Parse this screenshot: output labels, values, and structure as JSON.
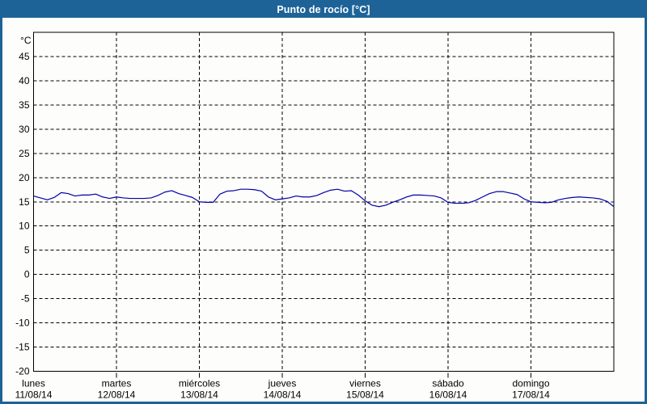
{
  "window": {
    "title": "Punto de rocío [°C]",
    "titlebar_color": "#1d6398",
    "border_color": "#1d6398",
    "background_color": "#fdfefb"
  },
  "chart_data": {
    "type": "line",
    "title": "Punto de rocío [°C]",
    "grid": {
      "style": "dashed",
      "color": "#000000",
      "frame_color": "#000000"
    },
    "legend_position": "none",
    "y_axis": {
      "unit_label": "°C",
      "min": -20,
      "max": 50,
      "tick_step": 5,
      "tick_labels": [
        45,
        40,
        35,
        30,
        25,
        20,
        15,
        10,
        5,
        0,
        -5,
        -10,
        -15,
        -20
      ]
    },
    "x_axis": {
      "days": [
        {
          "name": "lunes",
          "date": "11/08/14"
        },
        {
          "name": "martes",
          "date": "12/08/14"
        },
        {
          "name": "miércoles",
          "date": "13/08/14"
        },
        {
          "name": "jueves",
          "date": "14/08/14"
        },
        {
          "name": "viernes",
          "date": "15/08/14"
        },
        {
          "name": "sábado",
          "date": "16/08/14"
        },
        {
          "name": "domingo",
          "date": "17/08/14"
        }
      ]
    },
    "series": [
      {
        "name": "Punto de rocío",
        "color": "#0000aa",
        "sample_interval_hours": 2,
        "values": [
          16.2,
          15.8,
          15.4,
          15.9,
          16.9,
          16.7,
          16.2,
          16.4,
          16.4,
          16.6,
          16.0,
          15.7,
          16.0,
          15.8,
          15.7,
          15.7,
          15.7,
          15.8,
          16.3,
          17.0,
          17.3,
          16.7,
          16.3,
          15.9,
          15.0,
          14.9,
          14.9,
          16.6,
          17.2,
          17.3,
          17.6,
          17.6,
          17.5,
          17.2,
          16.0,
          15.4,
          15.6,
          15.8,
          16.2,
          16.0,
          16.0,
          16.3,
          16.9,
          17.4,
          17.6,
          17.2,
          17.3,
          16.4,
          15.2,
          14.3,
          14.0,
          14.3,
          14.9,
          15.4,
          16.0,
          16.4,
          16.4,
          16.3,
          16.2,
          15.8,
          14.9,
          14.7,
          14.7,
          14.8,
          15.3,
          16.0,
          16.7,
          17.1,
          17.1,
          16.8,
          16.5,
          15.6,
          15.0,
          14.9,
          14.8,
          14.9,
          15.4,
          15.7,
          15.9,
          16.0,
          15.9,
          15.8,
          15.6,
          15.1,
          14.0
        ]
      }
    ]
  }
}
